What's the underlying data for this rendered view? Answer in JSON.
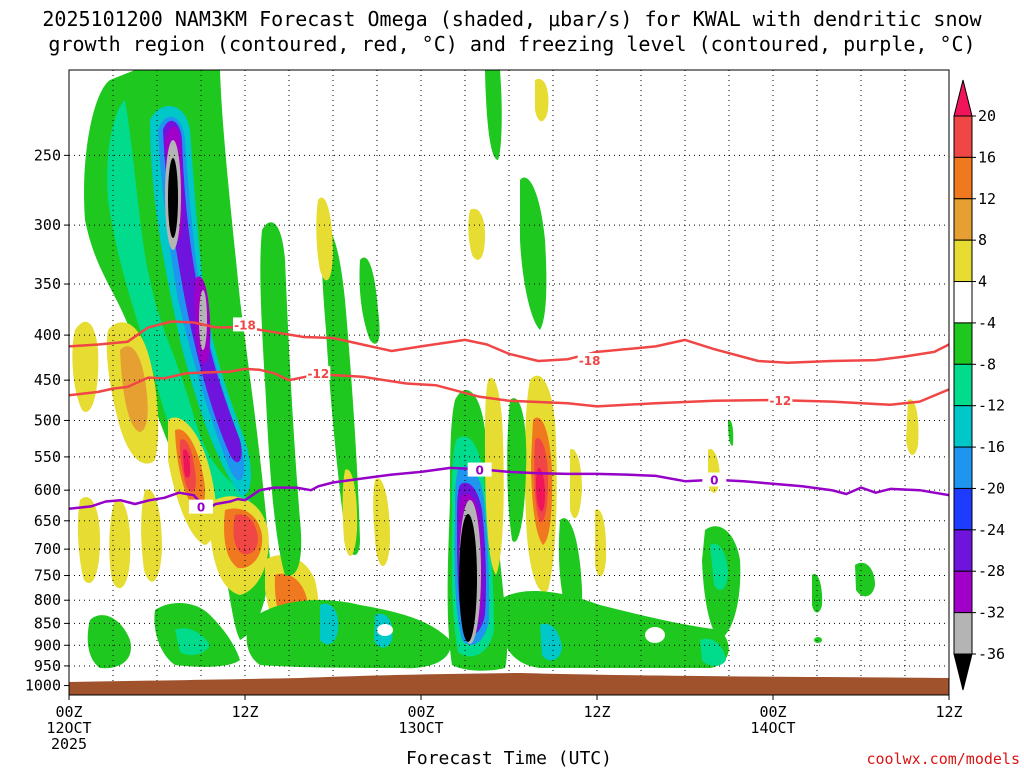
{
  "chart_data": {
    "type": "heatmap",
    "title_line1": "2025101200 NAM3KM Forecast Omega (shaded, μbar/s) for KWAL with dendritic snow",
    "title_line2": "growth region (contoured, red, °C) and freezing level (contoured, purple, °C)",
    "xlabel": "Forecast Time (UTC)",
    "credit": "coolwx.com/models",
    "x_range_hours": [
      0,
      60
    ],
    "y_range_hPa": [
      200,
      1025
    ],
    "y_ticks": [
      250,
      300,
      350,
      400,
      450,
      500,
      550,
      600,
      650,
      700,
      750,
      800,
      850,
      900,
      950,
      1000
    ],
    "x_ticks": [
      {
        "hour": 0,
        "line1": "00Z",
        "line2": "12OCT",
        "line3": "2025"
      },
      {
        "hour": 12,
        "line1": "12Z",
        "line2": "",
        "line3": ""
      },
      {
        "hour": 24,
        "line1": "00Z",
        "line2": "13OCT",
        "line3": ""
      },
      {
        "hour": 36,
        "line1": "12Z",
        "line2": "",
        "line3": ""
      },
      {
        "hour": 48,
        "line1": "00Z",
        "line2": "14OCT",
        "line3": ""
      },
      {
        "hour": 60,
        "line1": "12Z",
        "line2": "",
        "line3": ""
      }
    ],
    "colorbar": {
      "labels": [
        "20",
        "16",
        "12",
        "8",
        "4",
        "-4",
        "-8",
        "-12",
        "-16",
        "-20",
        "-24",
        "-28",
        "-32",
        "-36"
      ],
      "colors": [
        "#f0145a",
        "#f04646",
        "#f0781e",
        "#e6a032",
        "#e6dc32",
        "#ffffff",
        "#1ec81e",
        "#00dc8c",
        "#00c8c8",
        "#1e96f0",
        "#1e3cff",
        "#6e14dc",
        "#a000c8",
        "#b4b4b4",
        "#000000"
      ]
    },
    "colors": {
      "dendritic": "#f04646",
      "freezing": "#9600c8",
      "terrain": "#a0522d",
      "credit": "#dc1414"
    },
    "contours": {
      "minus18": {
        "label": "-18",
        "points": [
          [
            0,
            412
          ],
          [
            2,
            410
          ],
          [
            4,
            407
          ],
          [
            5.4,
            392
          ],
          [
            7,
            386
          ],
          [
            8.5,
            387
          ],
          [
            10,
            392
          ],
          [
            12,
            392
          ],
          [
            14,
            397
          ],
          [
            16,
            402
          ],
          [
            18,
            403
          ],
          [
            20,
            410
          ],
          [
            22,
            417
          ],
          [
            24,
            412
          ],
          [
            27,
            405
          ],
          [
            28.5,
            410
          ],
          [
            30,
            420
          ],
          [
            32,
            428
          ],
          [
            34,
            426
          ],
          [
            36,
            418
          ],
          [
            40,
            412
          ],
          [
            42,
            405
          ],
          [
            44,
            415
          ],
          [
            47,
            428
          ],
          [
            49,
            430
          ],
          [
            52,
            428
          ],
          [
            55,
            427
          ],
          [
            57,
            423
          ],
          [
            59,
            418
          ],
          [
            60,
            410
          ]
        ],
        "label_positions": [
          [
            12,
            390
          ],
          [
            35.5,
            428
          ]
        ]
      },
      "minus12": {
        "label": "-12",
        "points": [
          [
            0,
            468
          ],
          [
            2,
            464
          ],
          [
            3,
            460
          ],
          [
            4,
            458
          ],
          [
            5.4,
            447
          ],
          [
            6.5,
            448
          ],
          [
            8,
            442
          ],
          [
            9.5,
            441
          ],
          [
            11,
            440
          ],
          [
            12,
            437
          ],
          [
            13,
            438
          ],
          [
            14,
            442
          ],
          [
            15,
            450
          ],
          [
            17,
            443
          ],
          [
            20,
            446
          ],
          [
            23,
            454
          ],
          [
            25,
            456
          ],
          [
            28,
            470
          ],
          [
            30,
            475
          ],
          [
            34,
            478
          ],
          [
            36,
            482
          ],
          [
            40,
            478
          ],
          [
            44,
            475
          ],
          [
            48,
            474
          ],
          [
            52,
            476
          ],
          [
            56,
            480
          ],
          [
            58,
            476
          ],
          [
            60,
            461
          ]
        ],
        "label_positions": [
          [
            17,
            443
          ],
          [
            48.5,
            475
          ]
        ]
      },
      "zero_a": {
        "label": "0",
        "points": [
          [
            0,
            630
          ],
          [
            1.5,
            626
          ],
          [
            2.5,
            618
          ],
          [
            3.5,
            616
          ],
          [
            4.5,
            622
          ],
          [
            5.5,
            616
          ],
          [
            6.5,
            612
          ],
          [
            7.5,
            604
          ],
          [
            8.5,
            608
          ],
          [
            9,
            621
          ],
          [
            9.3,
            632
          ],
          [
            10,
            622
          ],
          [
            11,
            618
          ],
          [
            11.5,
            614
          ],
          [
            12,
            616
          ],
          [
            13,
            600
          ],
          [
            14,
            596
          ],
          [
            15.5,
            596
          ],
          [
            16.5,
            600
          ],
          [
            17,
            594
          ],
          [
            18,
            588
          ],
          [
            20,
            582
          ],
          [
            22,
            576
          ],
          [
            24,
            572
          ],
          [
            26,
            566
          ],
          [
            28,
            568
          ],
          [
            30,
            572
          ],
          [
            32,
            574
          ],
          [
            34,
            575
          ],
          [
            36,
            575
          ],
          [
            38,
            576
          ],
          [
            40,
            578
          ],
          [
            42,
            586
          ],
          [
            44,
            584
          ],
          [
            46,
            586
          ],
          [
            48,
            590
          ],
          [
            50,
            594
          ],
          [
            52,
            600
          ],
          [
            53,
            606
          ],
          [
            54,
            596
          ],
          [
            55,
            604
          ],
          [
            56,
            598
          ],
          [
            58,
            600
          ],
          [
            60,
            608
          ]
        ],
        "label_positions": [
          [
            9.0,
            628
          ],
          [
            28.0,
            570
          ],
          [
            44.0,
            585
          ]
        ]
      }
    }
  }
}
